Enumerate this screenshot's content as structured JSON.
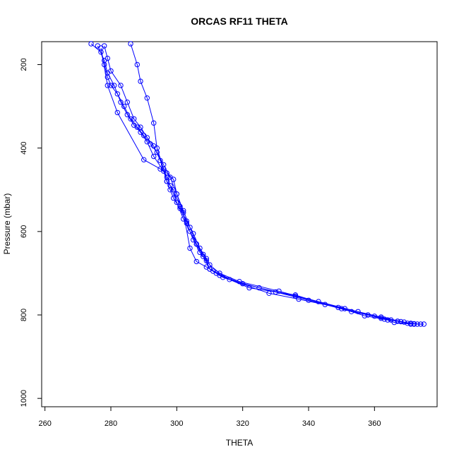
{
  "chart_data": {
    "type": "line",
    "title": "ORCAS RF11 THETA",
    "xlabel": "THETA",
    "ylabel": "Pressure (mbar)",
    "xlim": [
      259,
      379
    ],
    "ylim": [
      1020,
      145
    ],
    "y_reversed": true,
    "x_ticks": [
      260,
      280,
      300,
      320,
      340,
      360
    ],
    "y_ticks": [
      200,
      400,
      600,
      800,
      1000
    ],
    "grid": false,
    "legend": "none",
    "line_color": "#0000ff",
    "marker": "open-circle",
    "series": [
      {
        "points": [
          [
            274,
            150
          ],
          [
            277,
            170
          ],
          [
            278,
            200
          ],
          [
            279,
            230
          ],
          [
            280,
            250
          ],
          [
            282,
            270
          ],
          [
            284,
            300
          ],
          [
            286,
            330
          ],
          [
            288,
            350
          ],
          [
            290,
            370
          ],
          [
            292,
            390
          ],
          [
            294,
            410
          ],
          [
            296,
            440
          ],
          [
            298,
            470
          ],
          [
            300,
            510
          ],
          [
            302,
            550
          ],
          [
            304,
            590
          ],
          [
            306,
            630
          ],
          [
            308,
            660
          ],
          [
            310,
            690
          ],
          [
            312,
            700
          ],
          [
            320,
            725
          ],
          [
            330,
            745
          ],
          [
            340,
            765
          ],
          [
            350,
            785
          ],
          [
            358,
            800
          ],
          [
            363,
            810
          ],
          [
            367,
            815
          ],
          [
            370,
            820
          ],
          [
            373,
            822
          ],
          [
            375,
            822
          ]
        ]
      },
      {
        "points": [
          [
            286,
            150
          ],
          [
            288,
            200
          ],
          [
            289,
            240
          ],
          [
            291,
            280
          ],
          [
            293,
            340
          ],
          [
            294,
            400
          ],
          [
            296,
            450
          ],
          [
            297,
            480
          ],
          [
            299,
            500
          ],
          [
            301,
            540
          ],
          [
            303,
            580
          ],
          [
            305,
            620
          ],
          [
            307,
            650
          ],
          [
            309,
            670
          ],
          [
            310,
            690
          ],
          [
            313,
            705
          ],
          [
            322,
            735
          ],
          [
            336,
            752
          ],
          [
            345,
            775
          ],
          [
            353,
            792
          ],
          [
            360,
            803
          ],
          [
            365,
            812
          ],
          [
            368,
            816
          ],
          [
            372,
            821
          ]
        ]
      },
      {
        "points": [
          [
            276,
            155
          ],
          [
            278,
            190
          ],
          [
            279,
            220
          ],
          [
            281,
            250
          ],
          [
            283,
            290
          ],
          [
            285,
            320
          ],
          [
            287,
            345
          ],
          [
            289,
            362
          ],
          [
            291,
            385
          ],
          [
            293,
            420
          ],
          [
            296,
            455
          ],
          [
            297,
            480
          ],
          [
            298,
            500
          ],
          [
            299,
            520
          ],
          [
            301,
            545
          ],
          [
            303,
            575
          ],
          [
            305,
            605
          ],
          [
            307,
            640
          ],
          [
            309,
            665
          ],
          [
            311,
            695
          ],
          [
            314,
            710
          ],
          [
            328,
            748
          ],
          [
            337,
            762
          ],
          [
            349,
            782
          ],
          [
            357,
            802
          ],
          [
            364,
            812
          ],
          [
            366,
            818
          ],
          [
            371,
            822
          ]
        ]
      },
      {
        "points": [
          [
            277,
            160
          ],
          [
            279,
            250
          ],
          [
            282,
            315
          ],
          [
            290,
            428
          ],
          [
            295,
            450
          ],
          [
            297,
            460
          ],
          [
            299,
            475
          ],
          [
            300,
            510
          ],
          [
            302,
            555
          ],
          [
            304,
            640
          ],
          [
            306,
            672
          ],
          [
            309,
            685
          ],
          [
            316,
            715
          ],
          [
            325,
            735
          ],
          [
            336,
            755
          ],
          [
            351,
            785
          ],
          [
            362,
            805
          ],
          [
            369,
            817
          ],
          [
            372,
            822
          ]
        ]
      },
      {
        "points": [
          [
            278,
            155
          ],
          [
            279,
            185
          ],
          [
            280,
            215
          ],
          [
            283,
            250
          ],
          [
            285,
            290
          ],
          [
            287,
            330
          ],
          [
            289,
            350
          ],
          [
            291,
            375
          ],
          [
            293,
            395
          ],
          [
            295,
            430
          ],
          [
            296,
            450
          ],
          [
            297,
            470
          ],
          [
            298,
            490
          ],
          [
            300,
            530
          ],
          [
            302,
            570
          ],
          [
            304,
            600
          ],
          [
            306,
            630
          ],
          [
            308,
            655
          ],
          [
            310,
            680
          ],
          [
            313,
            700
          ],
          [
            319,
            720
          ],
          [
            331,
            743
          ],
          [
            343,
            768
          ],
          [
            355,
            792
          ],
          [
            362,
            808
          ],
          [
            367,
            815
          ],
          [
            371,
            820
          ],
          [
            374,
            822
          ]
        ]
      }
    ]
  }
}
